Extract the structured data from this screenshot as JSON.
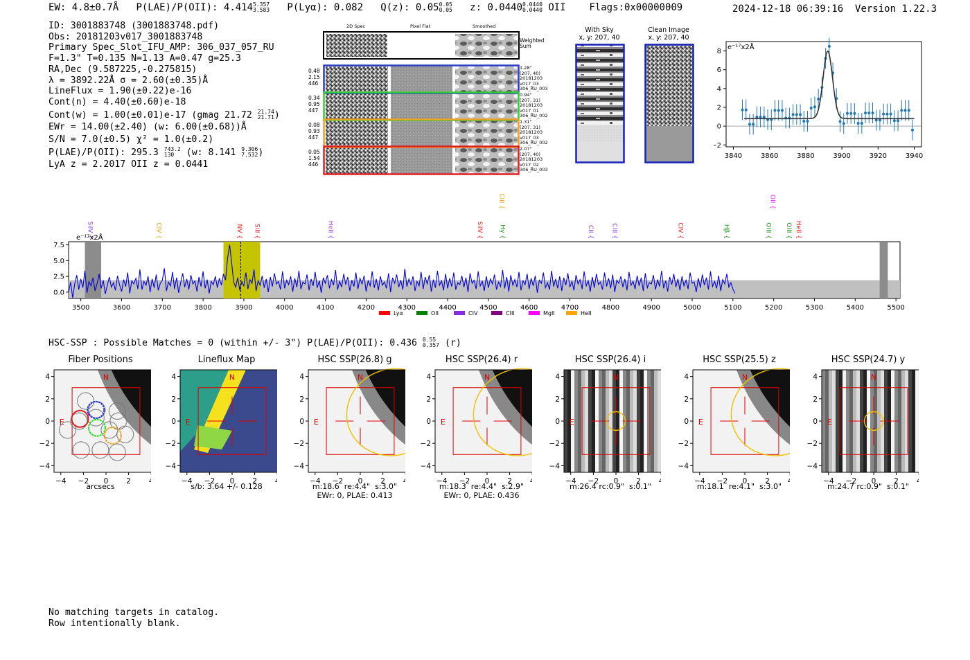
{
  "header": {
    "ew": "EW: 4.8±0.7Å",
    "plae_label": "P(LAE)/P(OII): 4.414",
    "plae_hi": "5.357",
    "plae_lo": "3.583",
    "plya": "P(Lyα): 0.082",
    "qz_label": "Q(z): 0.05",
    "qz_hi": "0.05",
    "qz_lo": "0.05",
    "z_label": "z: 0.0440",
    "z_hi": "0.0440",
    "z_lo": "0.0440",
    "z_line": "OII",
    "flags": "Flags:0x00000009",
    "timestamp": "2024-12-18 06:39:16",
    "version": "Version 1.22.3"
  },
  "info": {
    "id": "ID: 3001883748 (3001883748.pdf)",
    "obs": "Obs: 20181203v017_3001883748",
    "primary": "Primary Spec_Slot_IFU_AMP: 306_037_057_RU",
    "fparams": "F=1.3\"  T=0.135  N=1.13  A=0.47  g=25.3",
    "radec": "RA,Dec (9.587225,-0.275815)",
    "lambda": "λ = 3892.22Å   σ = 2.60(±0.35)Å",
    "lineflux": "LineFlux = 1.90(±0.22)e-16",
    "contn": "Cont(n) = 4.40(±0.60)e-18",
    "contw": "Cont(w) = 1.00(±0.01)e-17 (gmag 21.72",
    "contw_hi": "21.74",
    "contw_lo": "21.71",
    "ewr": "EWr = 14.00(±2.40) (w: 6.00(±0.68))Å",
    "sn": "S/N = 7.0(±0.5)  χ² = 1.0(±0.2)",
    "plae": "P(LAE)/P(OII): 295.3",
    "plae_hi": "743.2",
    "plae_lo": "130",
    "plae_w": "(w: 8.141",
    "plae_w_hi": "9.306",
    "plae_w_lo": "7.532",
    "lya_z": "LyA z = 2.2017   OII z = 0.0441"
  },
  "spec2d": {
    "col_labels": [
      "2D Spec",
      "Pixel Flat",
      "Smoothed"
    ],
    "weighted_sum": "Weighted Sum",
    "rows": [
      {
        "left": [
          "0.48",
          "2.15",
          "446"
        ],
        "right": [
          "1.28\"",
          "(207, 40)",
          "20181203",
          "v017_03",
          "306_RU_003"
        ],
        "color": "#2a3cc8"
      },
      {
        "left": [
          "0.34",
          "0.95",
          "447"
        ],
        "right": [
          "0.94\"",
          "(207, 31)",
          "20181203",
          "v017_01",
          "306_RU_002"
        ],
        "color": "#2fd02f"
      },
      {
        "left": [
          "0.08",
          "0.93",
          "447"
        ],
        "right": [
          "1.31\"",
          "(207, 31)",
          "20181203",
          "v017_03",
          "306_RU_002"
        ],
        "color": "#f0a020"
      },
      {
        "left": [
          "0.05",
          "1.54",
          "446"
        ],
        "right": [
          "2.07\"",
          "(207, 40)",
          "20181203",
          "v017_02",
          "306_RU_003"
        ],
        "color": "#e02020"
      }
    ]
  },
  "sky_panels": {
    "with_sky_title": "With Sky",
    "with_sky_xy": "x, y: 207, 40",
    "clean_title": "Clean Image",
    "clean_xy": "x, y: 207, 40"
  },
  "zoom_plot": {
    "ylabel": "e⁻¹⁷x2Å",
    "xticks": [
      "3840",
      "3860",
      "3880",
      "3900",
      "3920",
      "3940"
    ],
    "yticks": [
      "−2",
      "0",
      "2",
      "4",
      "6",
      "8"
    ]
  },
  "chart_data": {
    "type": "line",
    "title": "",
    "ylabel": "e⁻¹⁷x2Å",
    "xlim": [
      3470,
      5510
    ],
    "ylim": [
      -1.0,
      8.0
    ],
    "xticks": [
      3500,
      3600,
      3700,
      3800,
      3900,
      4000,
      4100,
      4200,
      4300,
      4400,
      4500,
      4600,
      4700,
      4800,
      4900,
      5000,
      5100,
      5200,
      5300,
      5400,
      5500
    ],
    "yticks": [
      0.0,
      2.5,
      5.0,
      7.5
    ],
    "ytick_labels": [
      "0.0",
      "2.5",
      "5.0",
      "7.5"
    ],
    "highlight_band": [
      3850,
      3940
    ],
    "detection_wavelength": 3892.22,
    "masked_regions": [
      [
        3510,
        3550
      ],
      [
        5460,
        5480
      ]
    ],
    "error_band": 1.9,
    "series": [
      {
        "name": "flux",
        "x_start": 3470,
        "x_step": 5,
        "values": [
          0.5,
          2.1,
          -0.4,
          1.8,
          3.2,
          0.9,
          2.6,
          1.2,
          3.9,
          0.4,
          2.2,
          1.5,
          2.8,
          0.7,
          1.9,
          3.4,
          1.1,
          2.4,
          0.2,
          1.6,
          2.9,
          1.3,
          2.0,
          0.8,
          3.1,
          1.7,
          0.6,
          2.5,
          1.4,
          3.6,
          0.3,
          2.3,
          1.8,
          2.7,
          1.0,
          4.1,
          0.9,
          2.2,
          1.6,
          3.0,
          0.5,
          2.6,
          1.2,
          3.3,
          0.8,
          1.9,
          2.4,
          4.3,
          0.7,
          2.1,
          1.5,
          3.7,
          1.0,
          2.8,
          0.4,
          2.0,
          3.5,
          1.3,
          2.6,
          0.9,
          3.2,
          1.8,
          2.3,
          0.6,
          2.9,
          1.4,
          3.8,
          1.1,
          2.5,
          0.3,
          2.2,
          1.7,
          3.0,
          1.2,
          2.7,
          1.6,
          3.4,
          2.4,
          5.8,
          8.0,
          5.2,
          2.1,
          1.3,
          2.8,
          0.8,
          2.2,
          1.5,
          3.6,
          1.0,
          2.5,
          1.9,
          4.1,
          0.7,
          2.3,
          1.6,
          3.1,
          1.2,
          2.6,
          0.5,
          2.9,
          1.4,
          3.5,
          1.8,
          2.2,
          0.9,
          3.8,
          1.1,
          2.4,
          1.7,
          3.0,
          0.6,
          2.7,
          1.3,
          3.9,
          1.0,
          2.1,
          1.8,
          3.3,
          0.8,
          2.6,
          1.5,
          3.7,
          1.2,
          2.3,
          0.4,
          2.8,
          1.9,
          3.2,
          1.1,
          2.5,
          1.6,
          4.0,
          0.9,
          2.2,
          1.3,
          3.4,
          1.7,
          2.9,
          0.7,
          2.4,
          1.4,
          3.6,
          1.0,
          2.7,
          1.8,
          3.1,
          0.6,
          2.3,
          1.5,
          3.8,
          1.2,
          2.6,
          0.8,
          3.0,
          1.6,
          2.1,
          1.1,
          3.5,
          0.5,
          2.8,
          1.9,
          3.3,
          1.3,
          2.4,
          0.9,
          4.2,
          1.4,
          2.6,
          1.7,
          3.0,
          0.7,
          2.2,
          1.5,
          3.7,
          1.0,
          2.9,
          1.8,
          3.2,
          0.6,
          2.5,
          1.2,
          3.9,
          1.6,
          2.3,
          0.8,
          3.4,
          1.1,
          2.7,
          1.4,
          3.6,
          0.9,
          2.0,
          1.7,
          3.1,
          1.3,
          2.8,
          0.5,
          3.5,
          1.9,
          2.4,
          1.0,
          3.8,
          1.5,
          2.2,
          0.7,
          3.0,
          1.2,
          2.6,
          1.8,
          3.3,
          0.9,
          2.1,
          1.4,
          4.0,
          1.1,
          2.9,
          0.6,
          3.2,
          1.6,
          2.5,
          1.3,
          3.7,
          0.8,
          2.3,
          1.7,
          3.4,
          1.0,
          2.7,
          1.5,
          3.1,
          0.4,
          2.4,
          1.9,
          3.6,
          1.2,
          2.0,
          0.9,
          3.9,
          1.4,
          2.6,
          1.1,
          3.0,
          0.7,
          2.8,
          1.6,
          3.5,
          1.3,
          2.2,
          0.8,
          3.2,
          1.8,
          2.5,
          1.0,
          3.8,
          1.5,
          2.3,
          0.6,
          2.9,
          1.2,
          3.4,
          1.7,
          2.1,
          0.9,
          3.6,
          1.4,
          2.7,
          1.1,
          3.3,
          0.5,
          2.4,
          1.9,
          3.0,
          1.3,
          2.6,
          0.8,
          3.7,
          1.6,
          2.2,
          1.0,
          3.1,
          1.5,
          2.8,
          0.7,
          3.5,
          1.2,
          2.0,
          1.8,
          3.2,
          0.9,
          2.5,
          1.4,
          3.9,
          1.1,
          2.3,
          0.6,
          2.9,
          1.7,
          3.4,
          1.3,
          2.6,
          0.8,
          3.0,
          1.5,
          2.4,
          1.0,
          3.6,
          1.9,
          2.1,
          0.5,
          2.7,
          1.2,
          3.3,
          1.6,
          2.8,
          0.9,
          3.8,
          1.4,
          2.2,
          1.1,
          3.1,
          0.7,
          2.5,
          1.8,
          3.4,
          1.3,
          2.0,
          1.0,
          0.3
        ]
      },
      {
        "name": "gaussian_fit",
        "center": 3892.2,
        "sigma": 2.6,
        "amplitude": 7.2,
        "continuum": 0.8
      }
    ],
    "emission_lines": [
      {
        "name": "SiIV",
        "x": 3513,
        "color": "#9040e0",
        "tier": 1
      },
      {
        "name": "CIV",
        "x": 3682,
        "color": "#f0a020",
        "tier": 1
      },
      {
        "name": "NV",
        "x": 3880,
        "color": "#e02020",
        "tier": 1
      },
      {
        "name": "SiII",
        "x": 3923,
        "color": "#e02020",
        "tier": 1
      },
      {
        "name": "HeII",
        "x": 4103,
        "color": "#9040e0",
        "tier": 1
      },
      {
        "name": "SiIV",
        "x": 4470,
        "color": "#e02020",
        "tier": 1
      },
      {
        "name": "CIII",
        "x": 4523,
        "color": "#f0a020",
        "tier": 0
      },
      {
        "name": "Hγ",
        "x": 4525,
        "color": "#1a8a1a",
        "tier": 1
      },
      {
        "name": "CII",
        "x": 4742,
        "color": "#9040e0",
        "tier": 1
      },
      {
        "name": "CIII",
        "x": 4800,
        "color": "#9040e0",
        "tier": 1
      },
      {
        "name": "CIV",
        "x": 4962,
        "color": "#e02020",
        "tier": 1
      },
      {
        "name": "Hβ",
        "x": 5075,
        "color": "#1a8a1a",
        "tier": 1
      },
      {
        "name": "OII",
        "x": 5188,
        "color": "#ff20ff",
        "tier": 0
      },
      {
        "name": "OIII",
        "x": 5178,
        "color": "#1a8a1a",
        "tier": 1
      },
      {
        "name": "OIII",
        "x": 5228,
        "color": "#1a8a1a",
        "tier": 1
      },
      {
        "name": "HeII",
        "x": 5252,
        "color": "#e02020",
        "tier": 1
      }
    ],
    "legend": [
      {
        "name": "Lyα",
        "color": "#ff0000"
      },
      {
        "name": "OII",
        "color": "#008000"
      },
      {
        "name": "CIV",
        "color": "#8a2be2"
      },
      {
        "name": "CIII",
        "color": "#800080"
      },
      {
        "name": "MgII",
        "color": "#ff00ff"
      },
      {
        "name": "HeII",
        "color": "#ffa500"
      }
    ]
  },
  "hsc": {
    "summary": "HSC-SSP : Possible Matches = 0 (within +/- 3\")  P(LAE)/P(OII): 0.436",
    "summary_hi": "0.55",
    "summary_lo": "0.357",
    "summary_band": "(r)",
    "cutouts": [
      {
        "title": "Fiber Positions",
        "cap1": "arcsecs",
        "cap2": ""
      },
      {
        "title": "Lineflux Map",
        "cap1": "s/b: 3.64 +/- 0.128",
        "cap2": ""
      },
      {
        "title": "HSC SSP(26.8) g",
        "cap1": "m:18.6  re:4.4\"  s:3.0\"",
        "cap2": "EWr: 0, PLAE: 0.413"
      },
      {
        "title": "HSC SSP(26.4) r",
        "cap1": "m:18.3  re:4.4\"  s:2.9\"",
        "cap2": "EWr: 0, PLAE: 0.436"
      },
      {
        "title": "HSC SSP(26.4) i",
        "cap1": "m:26.4 rc:0.9\"  s:0.1\"",
        "cap2": ""
      },
      {
        "title": "HSC SSP(25.5) z",
        "cap1": "m:18.1  re:4.1\"  s:3.0\"",
        "cap2": ""
      },
      {
        "title": "HSC SSP(24.7) y",
        "cap1": "m:24.7 rc:0.9\"  s:0.1\"",
        "cap2": ""
      }
    ],
    "axis_ticks": [
      "−4",
      "−2",
      "0",
      "2",
      "4"
    ],
    "north": "N",
    "east": "E"
  },
  "footer": {
    "line1": "No matching targets in catalog.",
    "line2": "Row intentionally blank."
  }
}
